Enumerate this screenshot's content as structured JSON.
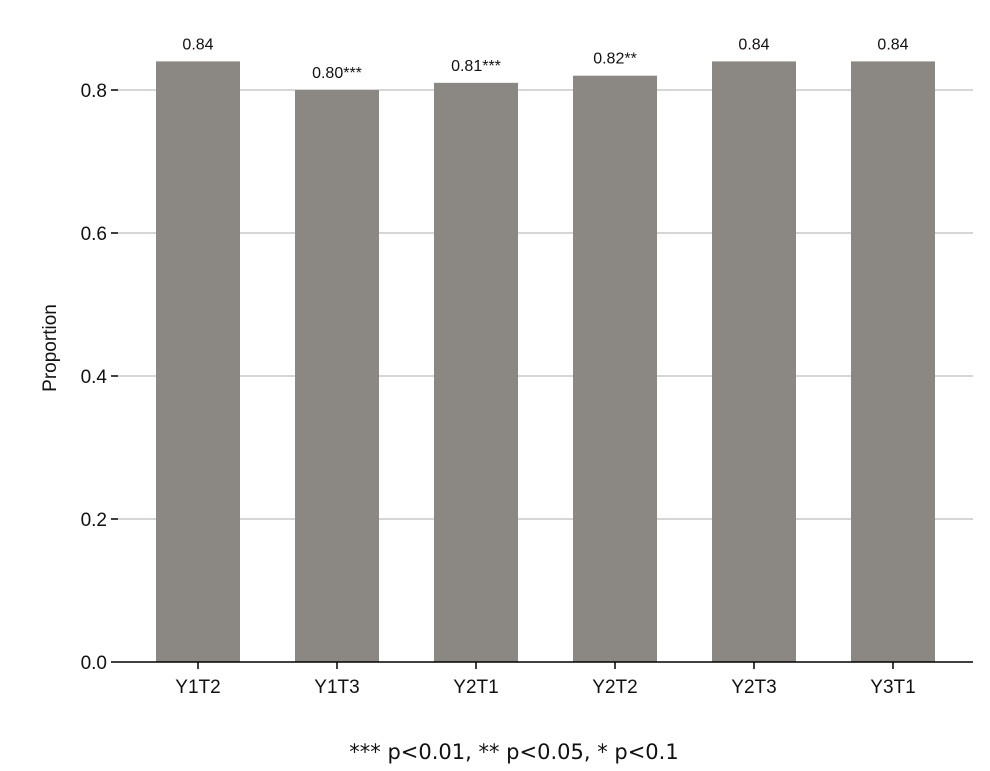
{
  "chart_data": {
    "type": "bar",
    "categories": [
      "Y1T2",
      "Y1T3",
      "Y2T1",
      "Y2T2",
      "Y2T3",
      "Y3T1"
    ],
    "values": [
      0.84,
      0.8,
      0.81,
      0.82,
      0.84,
      0.84
    ],
    "data_labels": [
      "0.84",
      "0.80***",
      "0.81***",
      "0.82**",
      "0.84",
      "0.84"
    ],
    "ylabel": "Proportion",
    "xlabel": "",
    "ylim": [
      0,
      0.88
    ],
    "yticks": [
      0.0,
      0.2,
      0.4,
      0.6,
      0.8
    ],
    "ytick_labels": [
      "0.0",
      "0.2",
      "0.4",
      "0.6",
      "0.8"
    ],
    "grid": true,
    "bar_color": "#8b8883",
    "grid_color": "#c8c8c8",
    "footnote": "*** p<0.01, ** p<0.05, * p<0.1"
  }
}
